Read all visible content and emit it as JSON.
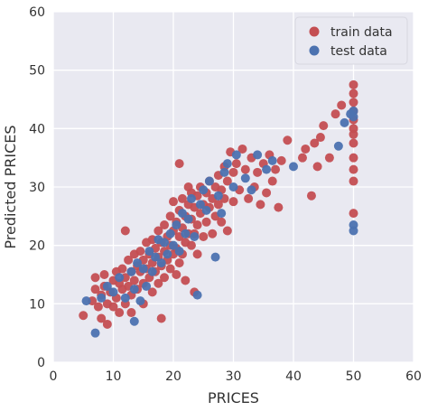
{
  "chart_data": {
    "type": "scatter",
    "title": "",
    "xlabel": "PRICES",
    "ylabel": "Predicted PRICES",
    "xlim": [
      0,
      60
    ],
    "ylim": [
      0,
      60
    ],
    "xticks": [
      0,
      10,
      20,
      30,
      40,
      50,
      60
    ],
    "yticks": [
      0,
      10,
      20,
      30,
      40,
      50,
      60
    ],
    "grid": true,
    "legend_position": "top-right",
    "colors": {
      "background": "#e9e9f1",
      "grid": "#ffffff",
      "train": "#c44e52",
      "test": "#4c72b0"
    },
    "series": [
      {
        "name": "train data",
        "color": "#c44e52",
        "points": [
          [
            5.0,
            8.0
          ],
          [
            6.5,
            10.5
          ],
          [
            7.0,
            12.5
          ],
          [
            7.0,
            14.5
          ],
          [
            7.5,
            9.5
          ],
          [
            8.0,
            11.5
          ],
          [
            8.0,
            7.5
          ],
          [
            8.5,
            13.0
          ],
          [
            8.5,
            15.0
          ],
          [
            9.0,
            10.0
          ],
          [
            9.0,
            6.5
          ],
          [
            9.5,
            12.0
          ],
          [
            10.0,
            14.0
          ],
          [
            10.0,
            9.5
          ],
          [
            10.5,
            15.5
          ],
          [
            10.5,
            11.0
          ],
          [
            11.0,
            13.5
          ],
          [
            11.0,
            8.5
          ],
          [
            11.5,
            16.0
          ],
          [
            11.5,
            12.5
          ],
          [
            12.0,
            14.5
          ],
          [
            12.0,
            10.0
          ],
          [
            12.5,
            17.5
          ],
          [
            12.5,
            13.0
          ],
          [
            12.0,
            22.5
          ],
          [
            13.0,
            15.5
          ],
          [
            13.0,
            11.5
          ],
          [
            13.5,
            18.5
          ],
          [
            13.5,
            14.0
          ],
          [
            13.0,
            8.5
          ],
          [
            14.0,
            16.5
          ],
          [
            14.0,
            12.5
          ],
          [
            14.5,
            19.0
          ],
          [
            14.5,
            15.5
          ],
          [
            15.0,
            17.5
          ],
          [
            15.0,
            13.5
          ],
          [
            15.0,
            10.0
          ],
          [
            15.5,
            20.5
          ],
          [
            15.5,
            16.0
          ],
          [
            16.0,
            18.5
          ],
          [
            16.0,
            14.5
          ],
          [
            16.5,
            21.0
          ],
          [
            16.5,
            17.0
          ],
          [
            16.5,
            12.0
          ],
          [
            17.0,
            19.5
          ],
          [
            17.0,
            15.5
          ],
          [
            17.5,
            22.5
          ],
          [
            17.5,
            18.0
          ],
          [
            17.5,
            13.5
          ],
          [
            18.0,
            20.5
          ],
          [
            18.0,
            16.5
          ],
          [
            18.0,
            7.5
          ],
          [
            18.5,
            23.5
          ],
          [
            18.5,
            19.0
          ],
          [
            18.5,
            14.5
          ],
          [
            19.0,
            21.5
          ],
          [
            19.0,
            17.5
          ],
          [
            19.5,
            25.0
          ],
          [
            19.5,
            20.0
          ],
          [
            19.5,
            16.0
          ],
          [
            20.0,
            22.5
          ],
          [
            20.0,
            18.5
          ],
          [
            20.0,
            27.5
          ],
          [
            20.5,
            24.0
          ],
          [
            20.5,
            19.5
          ],
          [
            20.5,
            15.0
          ],
          [
            21.0,
            26.0
          ],
          [
            21.0,
            21.5
          ],
          [
            21.0,
            17.0
          ],
          [
            21.5,
            28.0
          ],
          [
            21.5,
            23.0
          ],
          [
            21.5,
            18.5
          ],
          [
            21.0,
            34.0
          ],
          [
            22.0,
            25.0
          ],
          [
            22.0,
            20.5
          ],
          [
            22.0,
            14.0
          ],
          [
            22.5,
            27.0
          ],
          [
            22.5,
            22.0
          ],
          [
            22.5,
            30.0
          ],
          [
            23.0,
            24.5
          ],
          [
            23.0,
            20.0
          ],
          [
            23.0,
            29.0
          ],
          [
            23.5,
            26.5
          ],
          [
            23.5,
            22.0
          ],
          [
            23.5,
            12.0
          ],
          [
            24.0,
            28.5
          ],
          [
            24.0,
            23.5
          ],
          [
            24.0,
            18.5
          ],
          [
            24.5,
            25.5
          ],
          [
            24.5,
            30.0
          ],
          [
            25.0,
            27.0
          ],
          [
            25.0,
            21.5
          ],
          [
            25.5,
            29.0
          ],
          [
            25.5,
            24.0
          ],
          [
            26.0,
            26.5
          ],
          [
            26.0,
            31.0
          ],
          [
            26.5,
            28.0
          ],
          [
            26.5,
            22.0
          ],
          [
            27.0,
            30.0
          ],
          [
            27.0,
            25.0
          ],
          [
            27.5,
            32.0
          ],
          [
            27.5,
            27.0
          ],
          [
            28.0,
            29.5
          ],
          [
            28.0,
            24.0
          ],
          [
            28.5,
            33.5
          ],
          [
            28.5,
            28.0
          ],
          [
            29.0,
            31.0
          ],
          [
            29.0,
            22.5
          ],
          [
            29.5,
            36.0
          ],
          [
            30.0,
            32.5
          ],
          [
            30.0,
            27.5
          ],
          [
            30.5,
            34.0
          ],
          [
            31.0,
            29.5
          ],
          [
            31.5,
            36.5
          ],
          [
            32.0,
            33.0
          ],
          [
            32.5,
            28.0
          ],
          [
            33.0,
            35.0
          ],
          [
            33.5,
            30.0
          ],
          [
            34.0,
            32.5
          ],
          [
            34.5,
            27.0
          ],
          [
            35.0,
            34.0
          ],
          [
            35.5,
            29.0
          ],
          [
            36.0,
            35.5
          ],
          [
            36.5,
            31.0
          ],
          [
            37.0,
            33.0
          ],
          [
            37.5,
            26.5
          ],
          [
            38.0,
            34.5
          ],
          [
            39.0,
            38.0
          ],
          [
            41.5,
            35.0
          ],
          [
            42.0,
            36.5
          ],
          [
            43.0,
            28.5
          ],
          [
            43.5,
            37.5
          ],
          [
            44.0,
            33.5
          ],
          [
            44.5,
            38.5
          ],
          [
            45.0,
            40.5
          ],
          [
            46.0,
            35.0
          ],
          [
            47.0,
            42.5
          ],
          [
            48.0,
            44.0
          ],
          [
            50.0,
            47.5
          ],
          [
            50.0,
            46.0
          ],
          [
            50.0,
            44.5
          ],
          [
            50.0,
            43.0
          ],
          [
            50.0,
            41.5
          ],
          [
            50.0,
            40.0
          ],
          [
            50.0,
            39.0
          ],
          [
            50.0,
            37.5
          ],
          [
            50.0,
            35.0
          ],
          [
            50.0,
            33.0
          ],
          [
            50.0,
            31.0
          ],
          [
            50.0,
            25.5
          ]
        ]
      },
      {
        "name": "test data",
        "color": "#4c72b0",
        "points": [
          [
            5.5,
            10.5
          ],
          [
            7.0,
            5.0
          ],
          [
            8.0,
            11.0
          ],
          [
            9.0,
            13.0
          ],
          [
            10.0,
            12.0
          ],
          [
            11.0,
            14.5
          ],
          [
            12.0,
            11.0
          ],
          [
            13.0,
            15.5
          ],
          [
            13.5,
            12.5
          ],
          [
            14.0,
            17.0
          ],
          [
            14.5,
            10.5
          ],
          [
            15.0,
            16.0
          ],
          [
            15.5,
            13.0
          ],
          [
            13.5,
            7.0
          ],
          [
            16.0,
            19.0
          ],
          [
            16.5,
            15.5
          ],
          [
            17.0,
            18.0
          ],
          [
            17.5,
            21.0
          ],
          [
            18.0,
            17.0
          ],
          [
            18.5,
            20.5
          ],
          [
            19.0,
            18.5
          ],
          [
            19.5,
            22.0
          ],
          [
            20.0,
            20.0
          ],
          [
            20.5,
            23.5
          ],
          [
            21.0,
            19.0
          ],
          [
            21.5,
            25.5
          ],
          [
            22.0,
            22.0
          ],
          [
            22.5,
            24.5
          ],
          [
            23.0,
            28.0
          ],
          [
            23.5,
            21.5
          ],
          [
            24.0,
            11.5
          ],
          [
            24.5,
            27.0
          ],
          [
            25.0,
            29.5
          ],
          [
            25.5,
            26.0
          ],
          [
            26.0,
            31.0
          ],
          [
            27.0,
            18.0
          ],
          [
            27.5,
            28.5
          ],
          [
            28.0,
            25.5
          ],
          [
            28.5,
            32.5
          ],
          [
            29.0,
            34.0
          ],
          [
            30.0,
            30.0
          ],
          [
            30.5,
            35.5
          ],
          [
            32.0,
            31.5
          ],
          [
            33.0,
            29.5
          ],
          [
            34.0,
            35.5
          ],
          [
            35.5,
            33.0
          ],
          [
            36.5,
            34.5
          ],
          [
            40.0,
            33.5
          ],
          [
            47.5,
            37.0
          ],
          [
            48.5,
            41.0
          ],
          [
            49.5,
            42.5
          ],
          [
            50.0,
            43.0
          ],
          [
            50.0,
            42.0
          ],
          [
            50.0,
            23.5
          ],
          [
            50.0,
            22.5
          ]
        ]
      }
    ]
  }
}
